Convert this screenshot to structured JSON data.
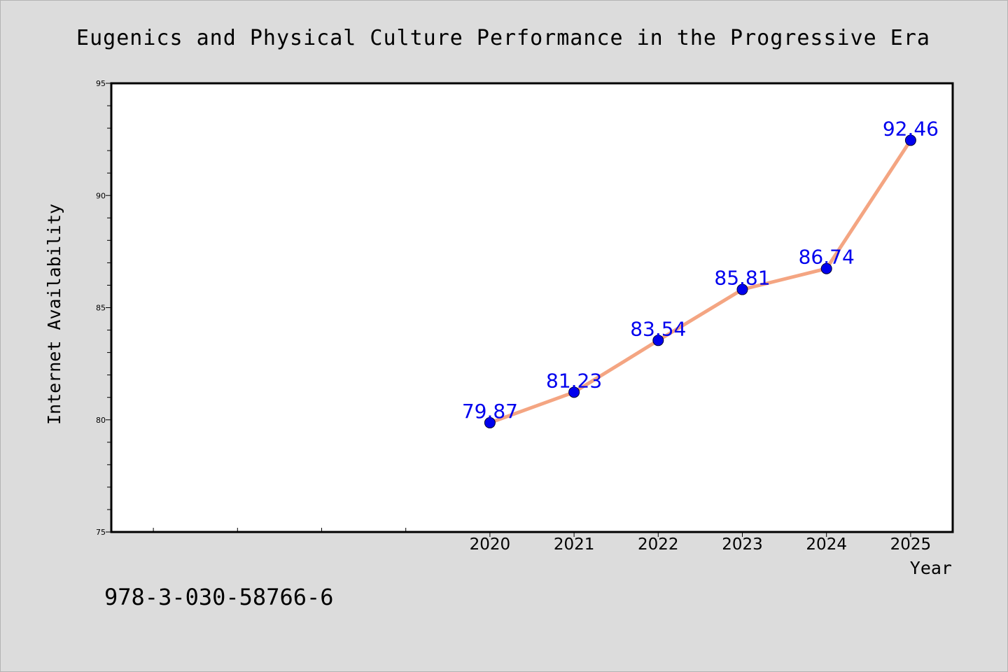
{
  "chart_data": {
    "type": "line",
    "title": "Eugenics and Physical Culture Performance in the Progressive Era",
    "xlabel": "Year",
    "ylabel": "Internet Availability",
    "x": [
      2020,
      2021,
      2022,
      2023,
      2024,
      2025
    ],
    "series": [
      {
        "values": [
          79.87,
          81.23,
          83.54,
          85.81,
          86.74,
          92.46
        ]
      }
    ],
    "data_labels": [
      "79.87",
      "81.23",
      "83.54",
      "85.81",
      "86.74",
      "92.46"
    ],
    "ylim": [
      75,
      95
    ],
    "xlim": [
      2015.5,
      2025.5
    ],
    "y_ticks": [
      75,
      80,
      85,
      90,
      95
    ],
    "y_tick_labels": [
      "75",
      "80",
      "85",
      "90",
      "95"
    ],
    "x_ticks": [
      2020,
      2021,
      2022,
      2023,
      2024,
      2025
    ],
    "x_tick_labels": [
      "2020",
      "2021",
      "2022",
      "2023",
      "2024",
      "2025"
    ],
    "x_unlabeled_ticks": [
      2016,
      2017,
      2018,
      2019
    ],
    "grid": false,
    "legend": "none",
    "colors": {
      "background": "#dcdcdc",
      "plot_background": "#ffffff",
      "line": "#f4a582",
      "marker": "#0000ee",
      "data_label": "#0000ee",
      "text": "#000000"
    }
  },
  "footer": {
    "isbn": "978-3-030-58766-6"
  }
}
